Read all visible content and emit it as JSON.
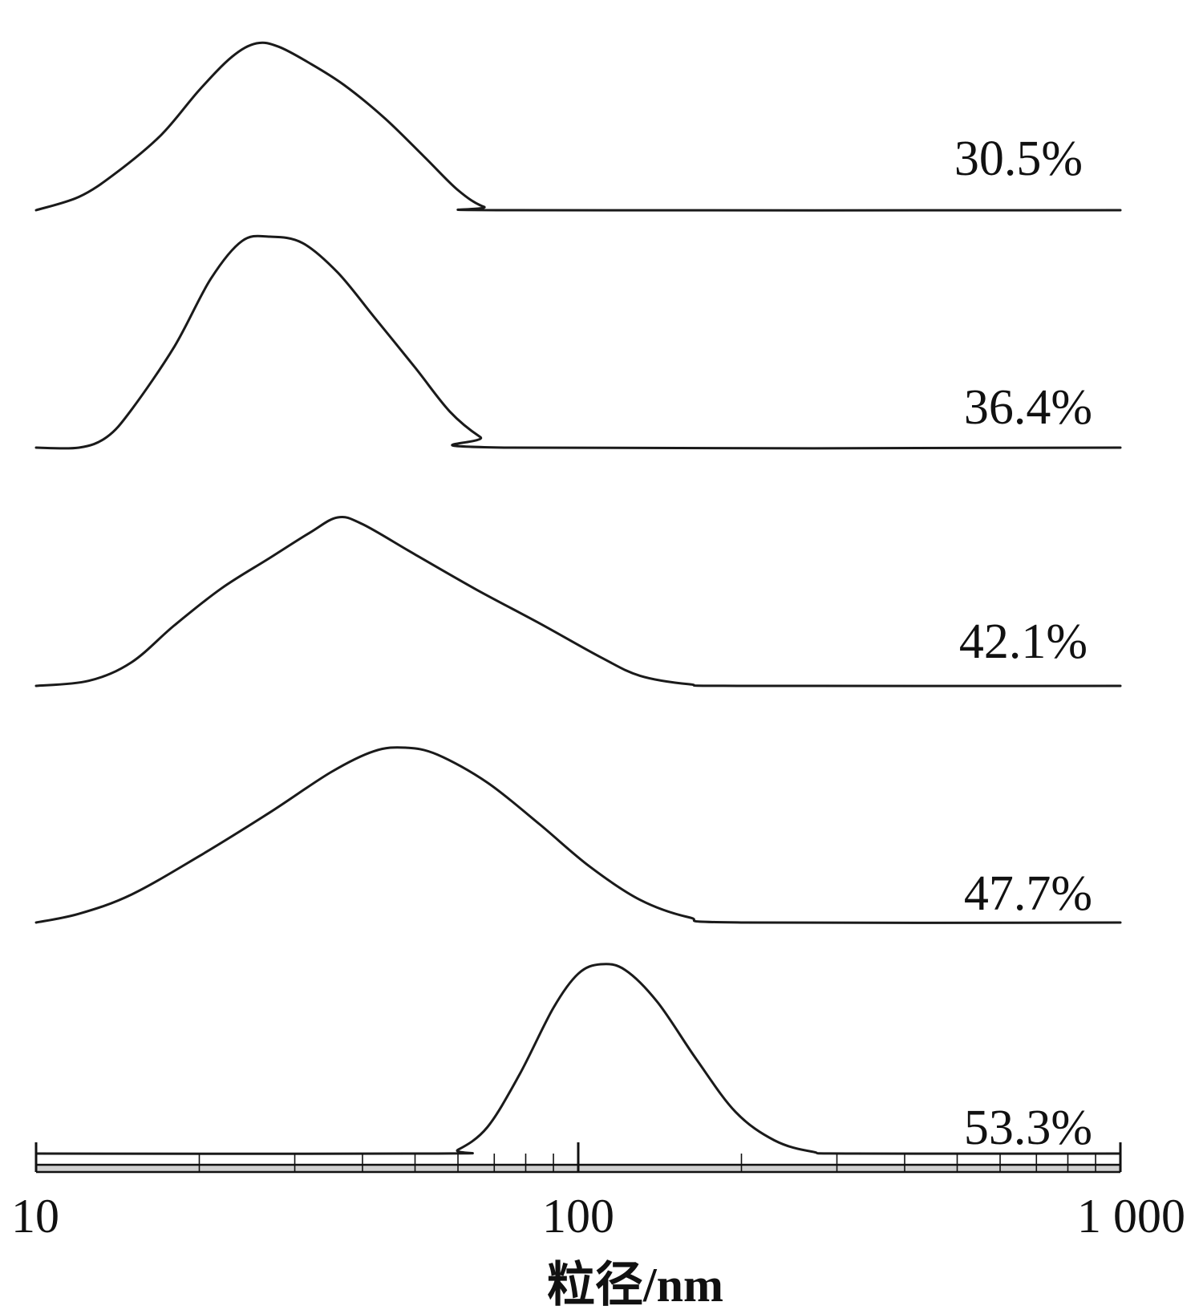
{
  "chart_data": {
    "type": "line",
    "xlabel": "粒径/nm",
    "x_scale": "log",
    "xlim": [
      10,
      1000
    ],
    "x_ticks": [
      10,
      100,
      1000
    ],
    "x_tick_labels": [
      "10",
      "100",
      "1 000"
    ],
    "y_axis_visible": false,
    "grid": false,
    "legend": "none",
    "series": [
      {
        "name": "30.5%",
        "points": [
          [
            10,
            0.0
          ],
          [
            12,
            0.08
          ],
          [
            14,
            0.22
          ],
          [
            17,
            0.45
          ],
          [
            20,
            0.72
          ],
          [
            23,
            0.92
          ],
          [
            25.5,
            1.0
          ],
          [
            28,
            0.98
          ],
          [
            32,
            0.88
          ],
          [
            37,
            0.75
          ],
          [
            44,
            0.55
          ],
          [
            52,
            0.32
          ],
          [
            60,
            0.12
          ],
          [
            67,
            0.02
          ],
          [
            75,
            0.0
          ],
          [
            1000,
            0.0
          ]
        ]
      },
      {
        "name": "36.4%",
        "points": [
          [
            10,
            0.0
          ],
          [
            12,
            0.0
          ],
          [
            13.5,
            0.05
          ],
          [
            15,
            0.18
          ],
          [
            18,
            0.48
          ],
          [
            21,
            0.8
          ],
          [
            24,
            0.98
          ],
          [
            27,
            1.0
          ],
          [
            31,
            0.97
          ],
          [
            36,
            0.83
          ],
          [
            42,
            0.62
          ],
          [
            50,
            0.38
          ],
          [
            58,
            0.17
          ],
          [
            66,
            0.05
          ],
          [
            73,
            0.0
          ],
          [
            1000,
            0.0
          ]
        ]
      },
      {
        "name": "42.1%",
        "points": [
          [
            10,
            0.0
          ],
          [
            12.5,
            0.03
          ],
          [
            15,
            0.14
          ],
          [
            18,
            0.36
          ],
          [
            22,
            0.58
          ],
          [
            27,
            0.76
          ],
          [
            32,
            0.91
          ],
          [
            36,
            1.0
          ],
          [
            40,
            0.96
          ],
          [
            50,
            0.78
          ],
          [
            65,
            0.57
          ],
          [
            85,
            0.37
          ],
          [
            110,
            0.17
          ],
          [
            130,
            0.06
          ],
          [
            160,
            0.01
          ],
          [
            200,
            0.0
          ],
          [
            1000,
            0.0
          ]
        ]
      },
      {
        "name": "47.7%",
        "points": [
          [
            10,
            0.0
          ],
          [
            12,
            0.05
          ],
          [
            15,
            0.16
          ],
          [
            20,
            0.38
          ],
          [
            27,
            0.63
          ],
          [
            35,
            0.86
          ],
          [
            42,
            0.98
          ],
          [
            48,
            1.0
          ],
          [
            55,
            0.96
          ],
          [
            68,
            0.8
          ],
          [
            85,
            0.56
          ],
          [
            105,
            0.32
          ],
          [
            130,
            0.13
          ],
          [
            160,
            0.03
          ],
          [
            200,
            0.0
          ],
          [
            1000,
            0.0
          ]
        ]
      },
      {
        "name": "53.3%",
        "points": [
          [
            10,
            0.0
          ],
          [
            55,
            0.0
          ],
          [
            60,
            0.02
          ],
          [
            68,
            0.14
          ],
          [
            78,
            0.42
          ],
          [
            90,
            0.77
          ],
          [
            100,
            0.95
          ],
          [
            110,
            1.0
          ],
          [
            122,
            0.97
          ],
          [
            140,
            0.8
          ],
          [
            165,
            0.5
          ],
          [
            195,
            0.22
          ],
          [
            230,
            0.07
          ],
          [
            270,
            0.01
          ],
          [
            320,
            0.0
          ],
          [
            1000,
            0.0
          ]
        ]
      }
    ]
  }
}
